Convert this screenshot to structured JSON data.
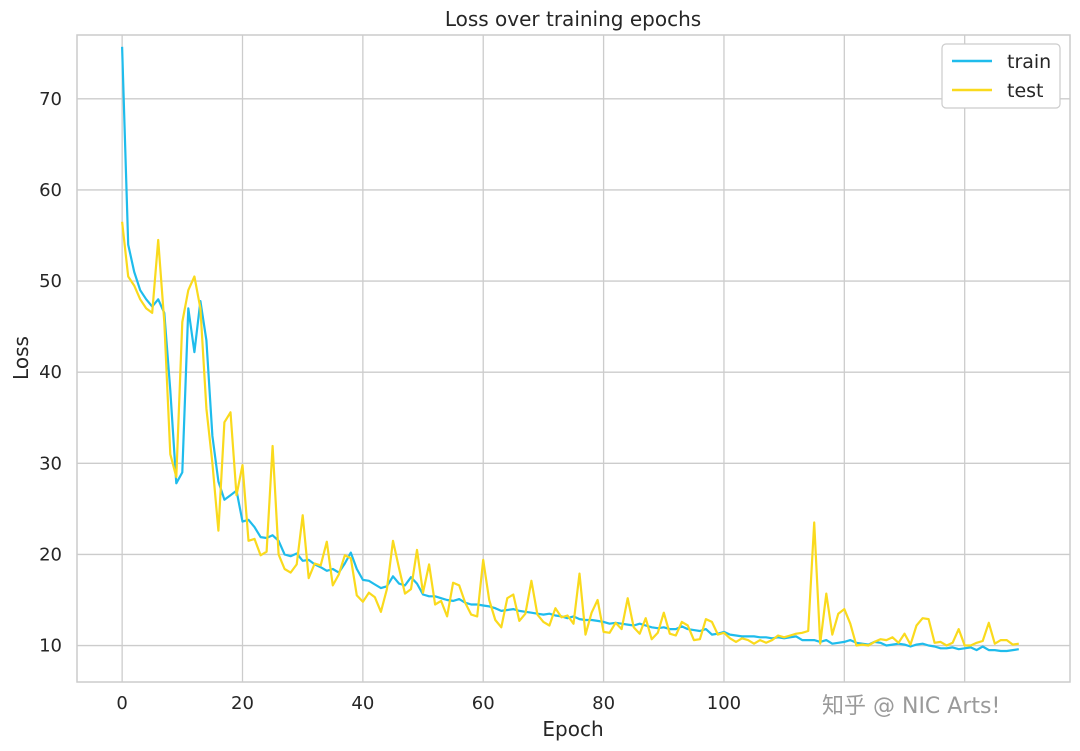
{
  "chart_data": {
    "type": "line",
    "title": "Loss over training epochs",
    "xlabel": "Epoch",
    "ylabel": "Loss",
    "xlim": [
      -7.5,
      157.5
    ],
    "ylim": [
      6,
      77
    ],
    "xticks": [
      0,
      20,
      40,
      60,
      80,
      100
    ],
    "yticks": [
      10,
      20,
      30,
      40,
      50,
      60,
      70
    ],
    "grid": true,
    "legend_position": "top-right",
    "series": [
      {
        "name": "train",
        "color": "#1fbcec",
        "x": [
          0,
          1,
          2,
          3,
          4,
          5,
          6,
          7,
          8,
          9,
          10,
          11,
          12,
          13,
          14,
          15,
          16,
          17,
          18,
          19,
          20,
          21,
          22,
          23,
          24,
          25,
          26,
          27,
          28,
          29,
          30,
          31,
          32,
          33,
          34,
          35,
          36,
          37,
          38,
          39,
          40,
          41,
          42,
          43,
          44,
          45,
          46,
          47,
          48,
          49,
          50,
          51,
          52,
          53,
          54,
          55,
          56,
          57,
          58,
          59,
          60,
          61,
          62,
          63,
          64,
          65,
          66,
          67,
          68,
          69,
          70,
          71,
          72,
          73,
          74,
          75,
          76,
          77,
          78,
          79,
          80,
          81,
          82,
          83,
          84,
          85,
          86,
          87,
          88,
          89,
          90,
          91,
          92,
          93,
          94,
          95,
          96,
          97,
          98,
          99,
          100,
          101,
          102,
          103,
          104,
          105,
          106,
          107,
          108,
          109,
          110,
          111,
          112,
          113,
          114,
          115,
          116,
          117,
          118,
          119,
          120,
          121,
          122,
          123,
          124,
          125,
          126,
          127,
          128,
          129,
          130,
          131,
          132,
          133,
          134,
          135,
          136,
          137,
          138,
          139,
          140,
          141,
          142,
          143,
          144,
          145,
          146,
          147,
          148,
          149
        ],
        "values": [
          75.7,
          54.0,
          51.0,
          49.0,
          48.0,
          47.2,
          48.0,
          46.5,
          38.0,
          27.8,
          29.0,
          47.0,
          42.2,
          47.8,
          43.5,
          33.0,
          28.0,
          26.0,
          26.5,
          27.0,
          23.6,
          23.8,
          23.0,
          21.9,
          21.8,
          22.1,
          21.5,
          20.0,
          19.8,
          20.1,
          19.3,
          19.4,
          18.9,
          18.6,
          18.2,
          18.4,
          18.0,
          19.0,
          20.2,
          18.4,
          17.2,
          17.1,
          16.7,
          16.3,
          16.5,
          17.6,
          16.8,
          16.6,
          17.5,
          16.8,
          15.6,
          15.4,
          15.4,
          15.2,
          15.0,
          14.9,
          15.1,
          14.7,
          14.5,
          14.5,
          14.4,
          14.3,
          14.1,
          13.8,
          13.9,
          14.0,
          13.8,
          13.7,
          13.6,
          13.5,
          13.4,
          13.5,
          13.3,
          13.2,
          13.0,
          13.2,
          12.9,
          12.8,
          12.8,
          12.7,
          12.6,
          12.4,
          12.5,
          12.4,
          12.3,
          12.2,
          12.4,
          12.2,
          12.0,
          11.9,
          12.0,
          11.8,
          11.8,
          12.1,
          11.8,
          11.7,
          11.6,
          11.8,
          11.2,
          11.3,
          11.5,
          11.2,
          11.1,
          11.0,
          11.0,
          11.0,
          10.9,
          10.9,
          10.8,
          10.9,
          10.8,
          10.9,
          11.0,
          10.6,
          10.6,
          10.6,
          10.4,
          10.6,
          10.2,
          10.3,
          10.4,
          10.6,
          10.3,
          10.2,
          10.1,
          10.4,
          10.3,
          10.0,
          10.1,
          10.2,
          10.1,
          9.9,
          10.1,
          10.2,
          10.0,
          9.9,
          9.7,
          9.7,
          9.8,
          9.6,
          9.7,
          9.8,
          9.5,
          9.9,
          9.5,
          9.5,
          9.4,
          9.4,
          9.5,
          9.6
        ]
      },
      {
        "name": "test",
        "color": "#fada1d",
        "x": [
          0,
          1,
          2,
          3,
          4,
          5,
          6,
          7,
          8,
          9,
          10,
          11,
          12,
          13,
          14,
          15,
          16,
          17,
          18,
          19,
          20,
          21,
          22,
          23,
          24,
          25,
          26,
          27,
          28,
          29,
          30,
          31,
          32,
          33,
          34,
          35,
          36,
          37,
          38,
          39,
          40,
          41,
          42,
          43,
          44,
          45,
          46,
          47,
          48,
          49,
          50,
          51,
          52,
          53,
          54,
          55,
          56,
          57,
          58,
          59,
          60,
          61,
          62,
          63,
          64,
          65,
          66,
          67,
          68,
          69,
          70,
          71,
          72,
          73,
          74,
          75,
          76,
          77,
          78,
          79,
          80,
          81,
          82,
          83,
          84,
          85,
          86,
          87,
          88,
          89,
          90,
          91,
          92,
          93,
          94,
          95,
          96,
          97,
          98,
          99,
          100,
          101,
          102,
          103,
          104,
          105,
          106,
          107,
          108,
          109,
          110,
          111,
          112,
          113,
          114,
          115,
          116,
          117,
          118,
          119,
          120,
          121,
          122,
          123,
          124,
          125,
          126,
          127,
          128,
          129,
          130,
          131,
          132,
          133,
          134,
          135,
          136,
          137,
          138,
          139,
          140,
          141,
          142,
          143,
          144,
          145,
          146,
          147,
          148,
          149
        ],
        "values": [
          56.5,
          50.5,
          49.5,
          48.0,
          47.0,
          46.5,
          54.5,
          45.5,
          31.0,
          28.5,
          45.5,
          49.0,
          50.5,
          47.0,
          36.0,
          30.0,
          22.6,
          34.5,
          35.6,
          26.5,
          29.8,
          21.5,
          21.7,
          19.9,
          20.3,
          31.9,
          20.0,
          18.4,
          18.0,
          18.9,
          24.3,
          17.4,
          19.0,
          18.8,
          21.4,
          16.6,
          17.8,
          19.9,
          19.6,
          15.5,
          14.8,
          15.8,
          15.3,
          13.7,
          16.2,
          21.5,
          18.5,
          15.7,
          16.2,
          20.5,
          15.8,
          18.9,
          14.5,
          14.9,
          13.2,
          16.9,
          16.6,
          14.7,
          13.4,
          13.2,
          19.4,
          15.0,
          12.8,
          12.0,
          15.2,
          15.6,
          12.7,
          13.5,
          17.1,
          13.4,
          12.6,
          12.2,
          14.1,
          13.1,
          13.3,
          12.4,
          17.9,
          11.2,
          13.6,
          15.0,
          11.5,
          11.4,
          12.5,
          11.8,
          15.2,
          12.0,
          11.3,
          13.0,
          10.7,
          11.4,
          13.6,
          11.3,
          11.1,
          12.6,
          12.2,
          10.6,
          10.7,
          12.9,
          12.6,
          11.2,
          11.4,
          10.8,
          10.4,
          10.8,
          10.6,
          10.2,
          10.6,
          10.3,
          10.6,
          11.1,
          10.9,
          11.1,
          11.3,
          11.4,
          11.6,
          23.5,
          10.2,
          15.7,
          11.2,
          13.5,
          14.0,
          12.4,
          10.0,
          10.1,
          10.0,
          10.4,
          10.7,
          10.6,
          10.9,
          10.3,
          11.3,
          10.1,
          12.2,
          13.0,
          12.9,
          10.3,
          10.4,
          10.0,
          10.3,
          11.8,
          10.0,
          10.0,
          10.3,
          10.5,
          12.5,
          10.2,
          10.6,
          10.6,
          10.1,
          10.2
        ]
      }
    ]
  },
  "watermark": "知乎 @ NIC Arts!"
}
